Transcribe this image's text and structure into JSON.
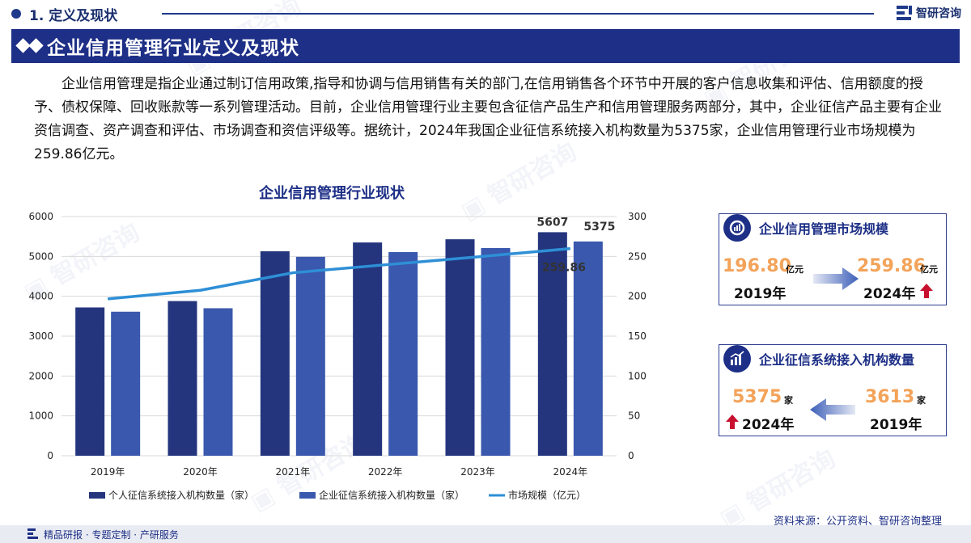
{
  "header": {
    "section_title": "1. 定义及现状",
    "logo_text": "智研咨询"
  },
  "banner": {
    "title": "企业信用管理行业定义及现状"
  },
  "paragraph": "企业信用管理是指企业通过制订信用政策,指导和协调与信用销售有关的部门,在信用销售各个环节中开展的客户信息收集和评估、信用额度的授予、债权保障、回收账款等一系列管理活动。目前，企业信用管理行业主要包含征信产品生产和信用管理服务两部分，其中，企业征信产品主要有企业资信调查、资产调查和评估、市场调查和资信评级等。据统计，2024年我国企业征信系统接入机构数量为5375家，企业信用管理行业市场规模为259.86亿元。",
  "chart_data": {
    "type": "bar",
    "title": "企业信用管理行业现状",
    "categories": [
      "2019年",
      "2020年",
      "2021年",
      "2022年",
      "2023年",
      "2024年"
    ],
    "series": [
      {
        "name": "个人征信系统接入机构数量（家）",
        "type": "bar",
        "axis": "left",
        "values": [
          3720,
          3880,
          5130,
          5350,
          5430,
          5607
        ],
        "color": "#24357e"
      },
      {
        "name": "企业征信系统接入机构数量（家）",
        "type": "bar",
        "axis": "left",
        "values": [
          3613,
          3700,
          4990,
          5110,
          5210,
          5375
        ],
        "color": "#3a58ad"
      },
      {
        "name": "市场规模（亿元）",
        "type": "line",
        "axis": "right",
        "values": [
          196.8,
          207.5,
          229.5,
          239.5,
          249.5,
          259.86
        ],
        "color": "#2e8fd6"
      }
    ],
    "left_axis": {
      "ylim": [
        0,
        6000
      ],
      "ticks": [
        "0",
        "1000",
        "2000",
        "3000",
        "4000",
        "5000",
        "6000"
      ]
    },
    "right_axis": {
      "ylim": [
        0,
        300
      ],
      "ticks": [
        "0",
        "50",
        "100",
        "150",
        "200",
        "250",
        "300"
      ]
    },
    "data_labels": {
      "bar1_last": "5607",
      "bar2_last": "5375",
      "line_last": "259.86"
    },
    "grid": true,
    "legend_position": "bottom"
  },
  "cards": {
    "market": {
      "title": "企业信用管理市场规模",
      "from_value": "196.80",
      "from_unit": "亿元",
      "from_year": "2019年",
      "to_value": "259.86",
      "to_unit": "亿元",
      "to_year": "2024年"
    },
    "institutions": {
      "title": "企业征信系统接入机构数量",
      "new_value": "5375",
      "new_unit": "家",
      "new_year": "2024年",
      "old_value": "3613",
      "old_unit": "家",
      "old_year": "2019年"
    }
  },
  "colors": {
    "brand": "#1d2f86",
    "value_orange": "#f3a35a",
    "arrow_red": "#c8102e",
    "line_blue": "#2e8fd6"
  },
  "footer": {
    "source": "资料来源：公开资料、智研咨询整理",
    "slogan": "精品研报 · 专题定制 · 产研服务"
  }
}
